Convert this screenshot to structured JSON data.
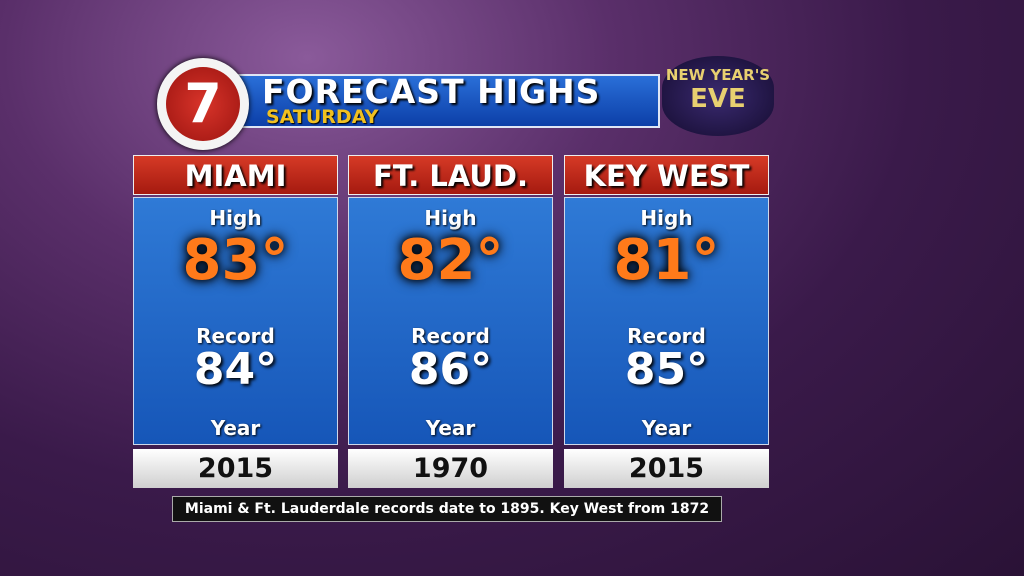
{
  "header": {
    "logo": "7",
    "title": "FORECAST HIGHS",
    "subtitle": "SATURDAY",
    "badge": [
      "NEW YEAR'S",
      "EVE"
    ]
  },
  "cards": [
    {
      "city": "MIAMI",
      "high_label": "High",
      "high": "83°",
      "record_label": "Record",
      "record": "84°",
      "year_label": "Year",
      "year": "2015"
    },
    {
      "city": "FT. LAUD.",
      "high_label": "High",
      "high": "82°",
      "record_label": "Record",
      "record": "86°",
      "year_label": "Year",
      "year": "1970"
    },
    {
      "city": "KEY WEST",
      "high_label": "High",
      "high": "81°",
      "record_label": "Record",
      "record": "85°",
      "year_label": "Year",
      "year": "2015"
    }
  ],
  "footer": "Miami & Ft. Lauderdale records date to 1895. Key West from 1872"
}
